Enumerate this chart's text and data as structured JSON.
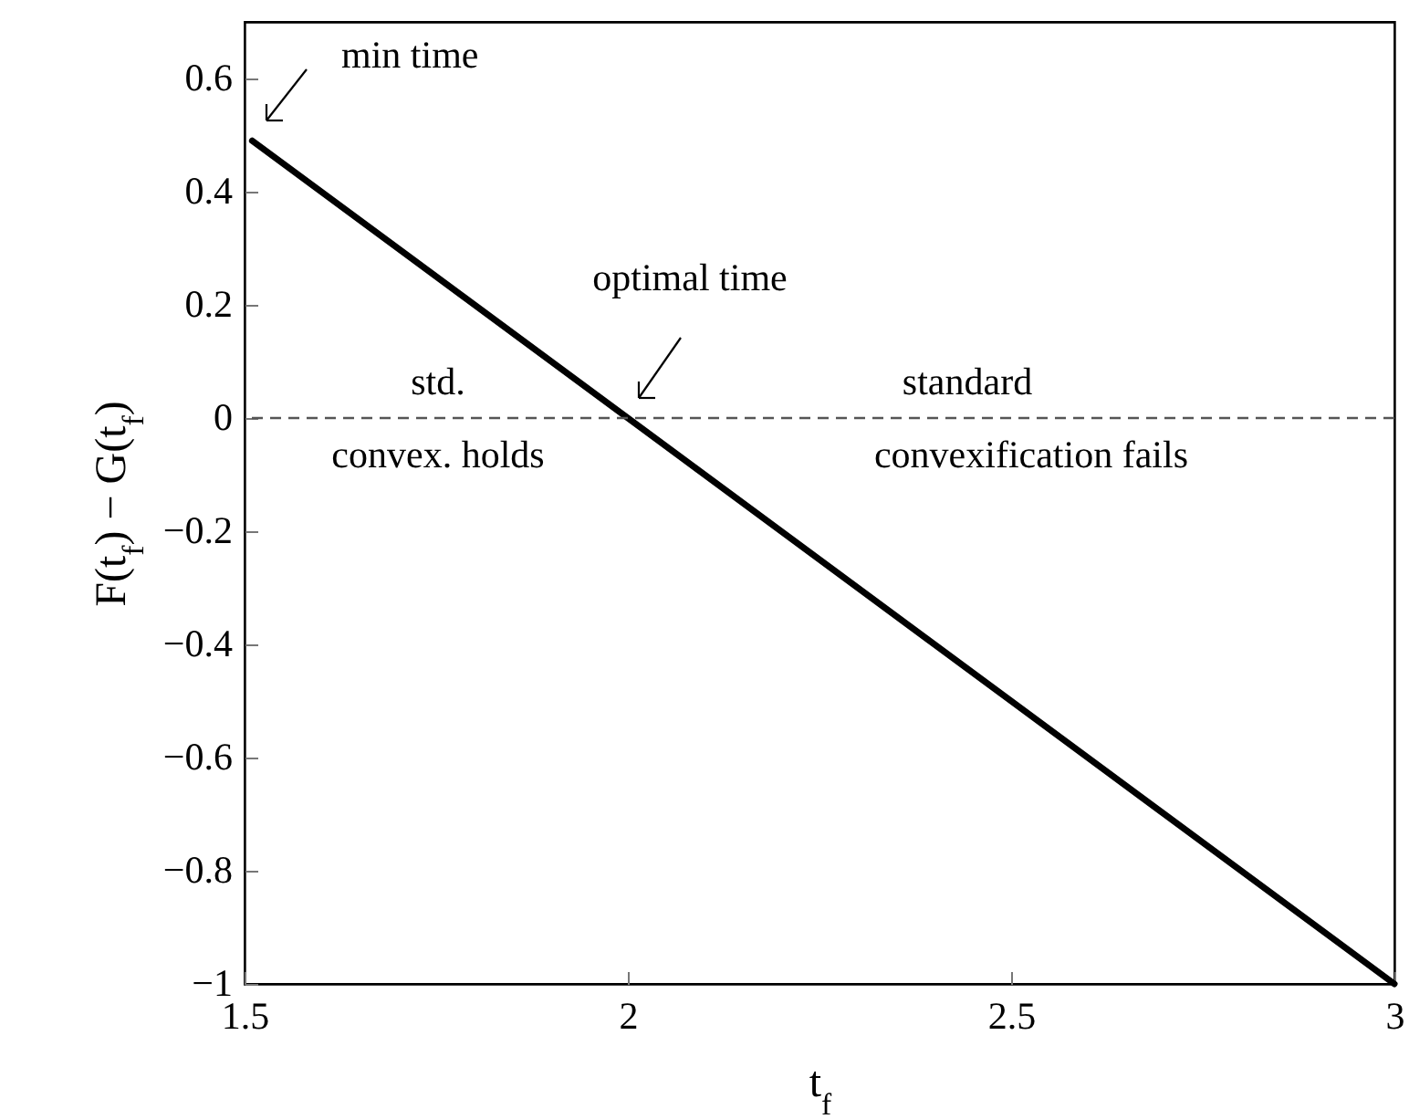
{
  "chart_data": {
    "type": "line",
    "xlabel": "t$_{f}$",
    "ylabel": "F(t$_{f}$) − G(t$_{f}$)",
    "xlim": [
      1.5,
      3
    ],
    "xticks": [
      1.5,
      2,
      2.5,
      3
    ],
    "ylim": [
      -1,
      0.7
    ],
    "yticks": [
      -1,
      -0.8,
      -0.6,
      -0.4,
      -0.2,
      0,
      0.2,
      0.4,
      0.6
    ],
    "grid": false,
    "marker": "none",
    "line_style": "solid",
    "series": [
      {
        "color": "#000000",
        "x": [
          1.51,
          3
        ],
        "values": [
          0.49,
          -1
        ]
      }
    ],
    "ref_lines": [
      {
        "axis": "y",
        "value": 0,
        "color": "#555555",
        "line_style": "dashed"
      }
    ],
    "annotations": [
      "min time",
      "optimal time",
      "std.",
      "convex. holds",
      "standard",
      "convexification fails"
    ]
  }
}
